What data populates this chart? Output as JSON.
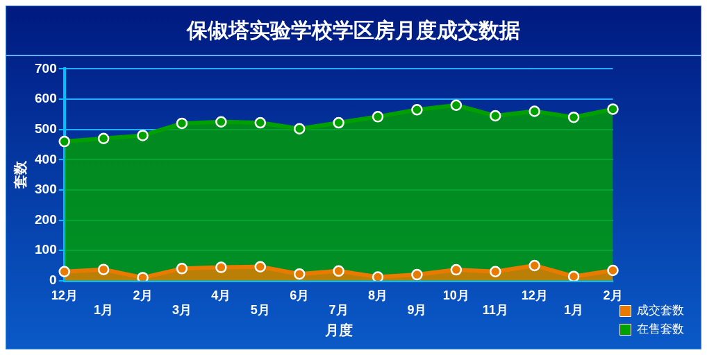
{
  "chart_data": {
    "type": "area",
    "title": "保俶塔实验学校学区房月度成交数据",
    "xlabel": "月度",
    "ylabel": "套数",
    "categories": [
      "12月",
      "1月",
      "2月",
      "3月",
      "4月",
      "5月",
      "6月",
      "7月",
      "8月",
      "9月",
      "10月",
      "11月",
      "12月",
      "1月",
      "2月"
    ],
    "series": [
      {
        "name": "成交套数",
        "color": "#e87a00",
        "values": [
          30,
          37,
          10,
          40,
          44,
          46,
          22,
          32,
          12,
          20,
          36,
          30,
          50,
          14,
          34
        ]
      },
      {
        "name": "在售套数",
        "color": "#00a000",
        "values": [
          460,
          470,
          480,
          520,
          525,
          522,
          502,
          522,
          542,
          565,
          580,
          545,
          560,
          540,
          567
        ]
      }
    ],
    "ylim": [
      0,
      700
    ],
    "yticks": [
      0,
      100,
      200,
      300,
      400,
      500,
      600,
      700
    ],
    "grid": "y",
    "legend": "right",
    "marker": "circle",
    "line_style": "solid"
  }
}
